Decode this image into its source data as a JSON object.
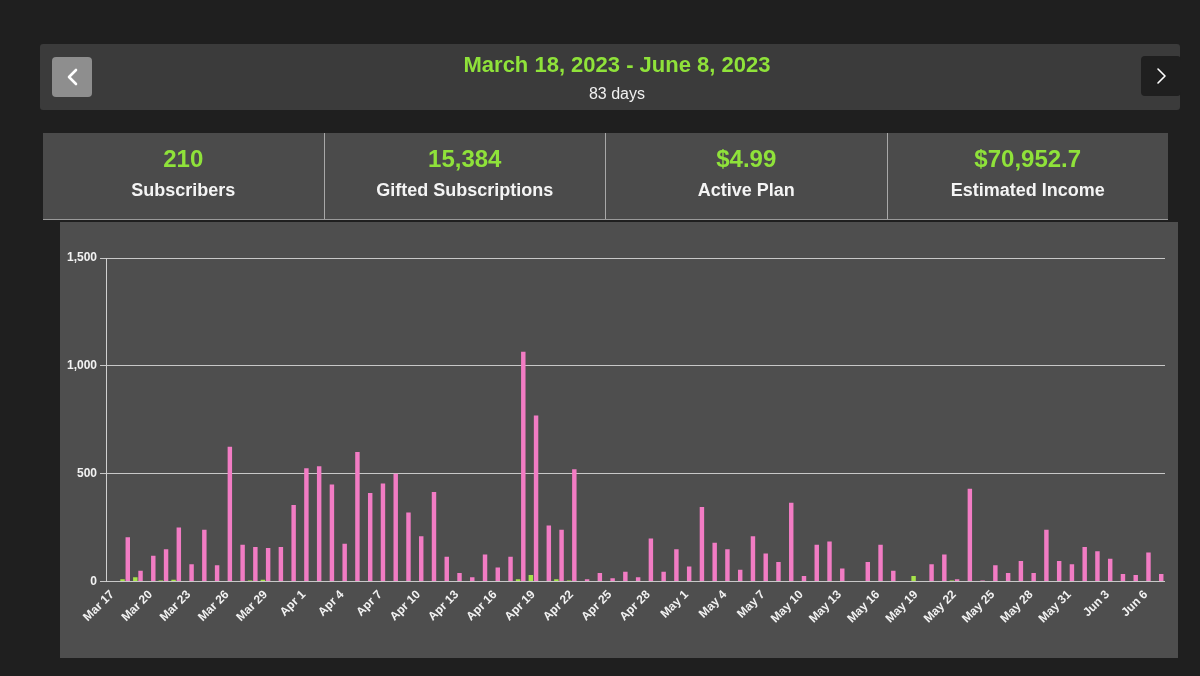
{
  "chart_data": [
    {
      "type": "other",
      "title": "March 18, 2023 - June 8, 2023",
      "subtitle": "83 days",
      "annotations": [
        "210",
        "Subscribers",
        "15,384",
        "Gifted Subscriptions",
        "$4.99",
        "Active Plan",
        "$70,952.7",
        "Estimated Income"
      ]
    },
    {
      "type": "bar",
      "categories": [
        "Mar 17",
        null,
        null,
        "Mar 20",
        null,
        null,
        "Mar 23",
        null,
        null,
        "Mar 26",
        null,
        null,
        "Mar 29",
        null,
        null,
        "Apr 1",
        null,
        null,
        "Apr 4",
        null,
        null,
        "Apr 7",
        null,
        null,
        "Apr 10",
        null,
        null,
        "Apr 13",
        null,
        null,
        "Apr 16",
        null,
        null,
        "Apr 19",
        null,
        null,
        "Apr 22",
        null,
        null,
        "Apr 25",
        null,
        null,
        "Apr 28",
        null,
        null,
        "May 1",
        null,
        null,
        "May 4",
        null,
        null,
        "May 7",
        null,
        null,
        "May 10",
        null,
        null,
        "May 13",
        null,
        null,
        "May 16",
        null,
        null,
        "May 19",
        null,
        null,
        "May 22",
        null,
        null,
        "May 25",
        null,
        null,
        "May 28",
        null,
        null,
        "May 31",
        null,
        null,
        "Jun 3",
        null,
        null,
        "Jun 6",
        null
      ],
      "series": [
        {
          "color": "#a6e34a",
          "values": [
            null,
            10,
            20,
            0,
            5,
            8,
            0,
            0,
            0,
            0,
            0,
            5,
            8,
            0,
            0,
            0,
            0,
            0,
            0,
            0,
            0,
            0,
            0,
            0,
            0,
            0,
            0,
            0,
            0,
            0,
            0,
            0,
            10,
            30,
            0,
            10,
            5,
            0,
            0,
            0,
            0,
            0,
            0,
            0,
            0,
            0,
            0,
            0,
            0,
            0,
            0,
            0,
            0,
            0,
            0,
            0,
            0,
            0,
            0,
            0,
            0,
            0,
            0,
            25,
            0,
            0,
            5,
            0,
            0,
            0,
            0,
            0,
            0,
            0,
            0,
            0,
            0,
            0,
            0,
            0,
            0,
            0,
            0
          ]
        },
        {
          "color": "#f27cc4",
          "values": [
            null,
            205,
            50,
            120,
            150,
            250,
            80,
            240,
            75,
            625,
            170,
            160,
            155,
            160,
            355,
            525,
            535,
            450,
            175,
            600,
            410,
            455,
            500,
            320,
            210,
            415,
            115,
            40,
            20,
            125,
            65,
            115,
            1065,
            770,
            260,
            240,
            520,
            10,
            40,
            15,
            45,
            20,
            200,
            45,
            150,
            70,
            345,
            180,
            150,
            55,
            210,
            130,
            90,
            365,
            25,
            170,
            185,
            60,
            0,
            90,
            170,
            50,
            0,
            0,
            80,
            125,
            10,
            430,
            5,
            75,
            40,
            95,
            40,
            240,
            95,
            80,
            160,
            140,
            105,
            35,
            30,
            135,
            35
          ]
        }
      ],
      "ylim": [
        0,
        1500
      ],
      "yticks": [
        0,
        500,
        {
          "value": 1000,
          "label": "1,000"
        },
        {
          "value": 1500,
          "label": "1,500"
        }
      ],
      "grid": "y"
    }
  ]
}
